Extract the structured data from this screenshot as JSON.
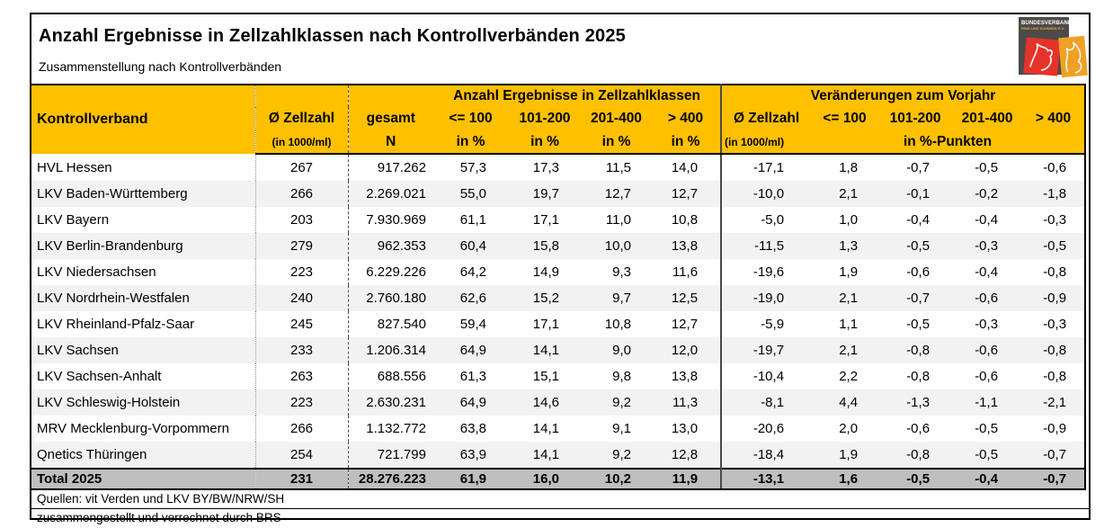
{
  "page": {
    "title": "Anzahl Ergebnisse in Zellzahlklassen nach Kontrollverbänden 2025",
    "subtitle": "Zusammenstellung nach Kontrollverbänden"
  },
  "logo": {
    "line1": "BUNDESVERBAND",
    "line2": "RIND UND SCHWEIN E.V.",
    "colors": {
      "box": "#4B4B49",
      "cow_square": "#E6332A",
      "pig_square": "#F0A125"
    }
  },
  "colors": {
    "header_bg": "#FFC000",
    "total_bg": "#BFBFBF",
    "row_stripe": "#F2F2F2"
  },
  "table": {
    "header": {
      "group_classes": "Anzahl Ergebnisse in Zellzahlklassen",
      "group_changes": "Veränderungen zum Vorjahr",
      "kontrollverband": "Kontrollverband",
      "zellzahl": "Ø Zellzahl",
      "zellzahl_unit": "(in 1000/ml)",
      "gesamt": "gesamt",
      "gesamt_n": "N",
      "cls_le100": "<= 100",
      "cls_101_200": "101-200",
      "cls_201_400": "201-400",
      "cls_gt400": "> 400",
      "in_pct": "in %",
      "pct_points": "in %-Punkten"
    },
    "rows": [
      [
        "HVL Hessen",
        "267",
        "917.262",
        "57,3",
        "17,3",
        "11,5",
        "14,0",
        "-17,1",
        "1,8",
        "-0,7",
        "-0,5",
        "-0,6"
      ],
      [
        "LKV Baden-Württemberg",
        "266",
        "2.269.021",
        "55,0",
        "19,7",
        "12,7",
        "12,7",
        "-10,0",
        "2,1",
        "-0,1",
        "-0,2",
        "-1,8"
      ],
      [
        "LKV Bayern",
        "203",
        "7.930.969",
        "61,1",
        "17,1",
        "11,0",
        "10,8",
        "-5,0",
        "1,0",
        "-0,4",
        "-0,4",
        "-0,3"
      ],
      [
        "LKV Berlin-Brandenburg",
        "279",
        "962.353",
        "60,4",
        "15,8",
        "10,0",
        "13,8",
        "-11,5",
        "1,3",
        "-0,5",
        "-0,3",
        "-0,5"
      ],
      [
        "LKV Niedersachsen",
        "223",
        "6.229.226",
        "64,2",
        "14,9",
        "9,3",
        "11,6",
        "-19,6",
        "1,9",
        "-0,6",
        "-0,4",
        "-0,8"
      ],
      [
        "LKV Nordrhein-Westfalen",
        "240",
        "2.760.180",
        "62,6",
        "15,2",
        "9,7",
        "12,5",
        "-19,0",
        "2,1",
        "-0,7",
        "-0,6",
        "-0,9"
      ],
      [
        "LKV Rheinland-Pfalz-Saar",
        "245",
        "827.540",
        "59,4",
        "17,1",
        "10,8",
        "12,7",
        "-5,9",
        "1,1",
        "-0,5",
        "-0,3",
        "-0,3"
      ],
      [
        "LKV Sachsen",
        "233",
        "1.206.314",
        "64,9",
        "14,1",
        "9,0",
        "12,0",
        "-19,7",
        "2,1",
        "-0,8",
        "-0,6",
        "-0,8"
      ],
      [
        "LKV Sachsen-Anhalt",
        "263",
        "688.556",
        "61,3",
        "15,1",
        "9,8",
        "13,8",
        "-10,4",
        "2,2",
        "-0,8",
        "-0,6",
        "-0,8"
      ],
      [
        "LKV Schleswig-Holstein",
        "223",
        "2.630.231",
        "64,9",
        "14,6",
        "9,2",
        "11,3",
        "-8,1",
        "4,4",
        "-1,3",
        "-1,1",
        "-2,1"
      ],
      [
        "MRV Mecklenburg-Vorpommern",
        "266",
        "1.132.772",
        "63,8",
        "14,1",
        "9,1",
        "13,0",
        "-20,6",
        "2,0",
        "-0,6",
        "-0,5",
        "-0,9"
      ],
      [
        "Qnetics Thüringen",
        "254",
        "721.799",
        "63,9",
        "14,1",
        "9,2",
        "12,8",
        "-18,4",
        "1,9",
        "-0,8",
        "-0,5",
        "-0,7"
      ]
    ],
    "total": [
      "Total 2025",
      "231",
      "28.276.223",
      "61,9",
      "16,0",
      "10,2",
      "11,9",
      "-13,1",
      "1,6",
      "-0,5",
      "-0,4",
      "-0,7"
    ]
  },
  "footer": [
    "Quellen: vit Verden und LKV BY/BW/NRW/SH",
    "zusammengestellt und verrechnet durch BRS"
  ]
}
